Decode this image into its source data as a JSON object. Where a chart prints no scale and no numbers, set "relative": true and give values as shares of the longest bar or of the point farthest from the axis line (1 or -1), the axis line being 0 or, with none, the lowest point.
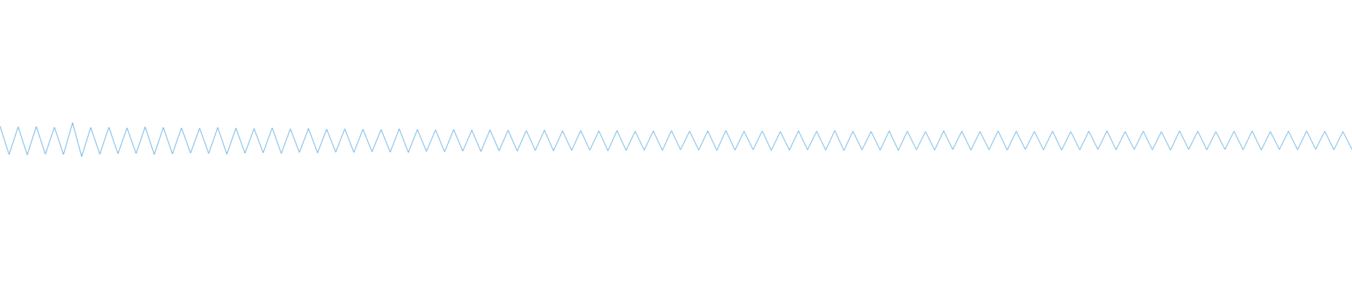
{
  "chart_data": {
    "type": "line",
    "relative": true,
    "grid": false,
    "legend": false,
    "marker": "none",
    "line_style": "solid",
    "categories": [
      null,
      null,
      null,
      null,
      null,
      null,
      null,
      null,
      null,
      null,
      null,
      null,
      null,
      null,
      null,
      null,
      null,
      null,
      null,
      null,
      null,
      null,
      null,
      null,
      null,
      null,
      null,
      null,
      null,
      null,
      null,
      null,
      null,
      null,
      null,
      null,
      null,
      null,
      null,
      null,
      null,
      null,
      null,
      null,
      null,
      null,
      null,
      null,
      null,
      null,
      null,
      null,
      null,
      null,
      null,
      null,
      null,
      null,
      null,
      null,
      null,
      null,
      null,
      null,
      null,
      null,
      null,
      null,
      null,
      null,
      null,
      null,
      null,
      null,
      null,
      null,
      null,
      null,
      null,
      null,
      null,
      null,
      null,
      null,
      null,
      null,
      null,
      null,
      null,
      null,
      null,
      null,
      null,
      null,
      null,
      null,
      null,
      null,
      null,
      null,
      null,
      null,
      null,
      null,
      null,
      null,
      null,
      null,
      null,
      null,
      null,
      null,
      null,
      null,
      null,
      null,
      null,
      null,
      null,
      null,
      null,
      null,
      null,
      null,
      null,
      null,
      null,
      null,
      null,
      null,
      null,
      null,
      null,
      null,
      null,
      null,
      null,
      null,
      null,
      null,
      null,
      null,
      null,
      null,
      null,
      null,
      null,
      null,
      null,
      null
    ],
    "series": [
      {
        "color": "#5aaae0",
        "values": [
          0.9,
          0.06,
          0.88,
          0.05,
          0.89,
          0.07,
          0.87,
          0.06,
          1.0,
          0.0,
          0.86,
          0.07,
          0.87,
          0.08,
          0.85,
          0.09,
          0.88,
          0.06,
          0.86,
          0.08,
          0.85,
          0.1,
          0.84,
          0.09,
          0.86,
          0.07,
          0.84,
          0.1,
          0.83,
          0.11,
          0.85,
          0.09,
          0.82,
          0.12,
          0.83,
          0.11,
          0.81,
          0.13,
          0.82,
          0.12,
          0.81,
          0.14,
          0.8,
          0.13,
          0.82,
          0.12,
          0.8,
          0.15,
          0.79,
          0.14,
          0.8,
          0.16,
          0.78,
          0.15,
          0.79,
          0.17,
          0.78,
          0.16,
          0.77,
          0.18,
          0.78,
          0.17,
          0.76,
          0.18,
          0.77,
          0.19,
          0.76,
          0.17,
          0.77,
          0.18,
          0.75,
          0.19,
          0.76,
          0.18,
          0.77,
          0.2,
          0.75,
          0.19,
          0.76,
          0.18,
          0.77,
          0.19,
          0.75,
          0.2,
          0.76,
          0.18,
          0.74,
          0.19,
          0.76,
          0.2,
          0.75,
          0.19,
          0.77,
          0.18,
          0.75,
          0.2,
          0.74,
          0.19,
          0.76,
          0.18,
          0.75,
          0.2,
          0.74,
          0.19,
          0.76,
          0.21,
          0.75,
          0.19,
          0.74,
          0.2,
          0.76,
          0.19,
          0.75,
          0.21,
          0.74,
          0.2,
          0.75,
          0.19,
          0.74,
          0.2,
          0.75,
          0.21,
          0.76,
          0.2,
          0.74,
          0.21,
          0.75,
          0.2,
          0.74,
          0.19,
          0.76,
          0.21,
          0.75,
          0.2,
          0.74,
          0.21,
          0.75,
          0.2,
          0.76,
          0.19,
          0.74,
          0.21,
          0.75,
          0.2,
          0.76,
          0.21,
          0.75,
          0.2,
          0.74,
          0.21
        ]
      }
    ]
  }
}
